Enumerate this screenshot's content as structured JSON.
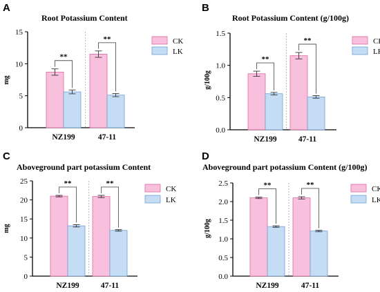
{
  "colors": {
    "CK": "#f9c0dd",
    "LK": "#c5dcf5",
    "CK_edge": "#d96aa7",
    "LK_edge": "#6f9fd3",
    "axis": "#000000",
    "divider": "#aaaaaa"
  },
  "legend": [
    "CK",
    "LK"
  ],
  "panels": [
    {
      "letter": "A",
      "title": "Root Potassium Content"
    },
    {
      "letter": "B",
      "title": "Root Potassium Content (g/100g)"
    },
    {
      "letter": "C",
      "title": "Aboveground part potassium Content"
    },
    {
      "letter": "D",
      "title": "Aboveground part potassium Content (g/100g)"
    }
  ],
  "chart_data": [
    {
      "type": "bar",
      "title": "Root Potassium Content",
      "ylabel": "mg",
      "xlabel": "",
      "categories": [
        "NZ199",
        "47-11"
      ],
      "series": [
        {
          "name": "CK",
          "values": [
            8.7,
            11.5
          ],
          "errors": [
            0.5,
            0.5
          ]
        },
        {
          "name": "LK",
          "values": [
            5.6,
            5.1
          ],
          "errors": [
            0.3,
            0.25
          ]
        }
      ],
      "ylim": [
        0,
        15
      ],
      "yticks": [
        "0",
        "5",
        "10",
        "15"
      ],
      "significance": [
        "**",
        "**"
      ],
      "legend_position": "right",
      "grid": false
    },
    {
      "type": "bar",
      "title": "Root Potassium Content (g/100g)",
      "ylabel": "g/100g",
      "xlabel": "",
      "categories": [
        "NZ199",
        "47-11"
      ],
      "series": [
        {
          "name": "CK",
          "values": [
            0.87,
            1.15
          ],
          "errors": [
            0.04,
            0.05
          ]
        },
        {
          "name": "LK",
          "values": [
            0.56,
            0.51
          ],
          "errors": [
            0.02,
            0.02
          ]
        }
      ],
      "ylim": [
        0,
        1.5
      ],
      "yticks": [
        "0.0",
        "0.5",
        "1.0",
        "1.5"
      ],
      "significance": [
        "**",
        "**"
      ],
      "legend_position": "right",
      "grid": false
    },
    {
      "type": "bar",
      "title": "Aboveground part potassium Content",
      "ylabel": "mg",
      "xlabel": "",
      "categories": [
        "NZ199",
        "47-11"
      ],
      "series": [
        {
          "name": "CK",
          "values": [
            21.0,
            20.9
          ],
          "errors": [
            0.2,
            0.3
          ]
        },
        {
          "name": "LK",
          "values": [
            13.2,
            12.0
          ],
          "errors": [
            0.3,
            0.2
          ]
        }
      ],
      "ylim": [
        0,
        25
      ],
      "yticks": [
        "0",
        "5",
        "10",
        "15",
        "20",
        "25"
      ],
      "significance": [
        "**",
        "**"
      ],
      "legend_position": "right",
      "grid": false
    },
    {
      "type": "bar",
      "title": "Aboveground part potassium Content (g/100g)",
      "ylabel": "g/100g",
      "xlabel": "",
      "categories": [
        "NZ199",
        "47-11"
      ],
      "series": [
        {
          "name": "CK",
          "values": [
            2.1,
            2.1
          ],
          "errors": [
            0.02,
            0.03
          ]
        },
        {
          "name": "LK",
          "values": [
            1.33,
            1.21
          ],
          "errors": [
            0.02,
            0.02
          ]
        }
      ],
      "ylim": [
        0,
        2.5
      ],
      "yticks": [
        "0.0",
        "0.5",
        "1.0",
        "1.5",
        "2.0",
        "2.5"
      ],
      "significance": [
        "**",
        "**"
      ],
      "legend_position": "right",
      "grid": false
    }
  ]
}
